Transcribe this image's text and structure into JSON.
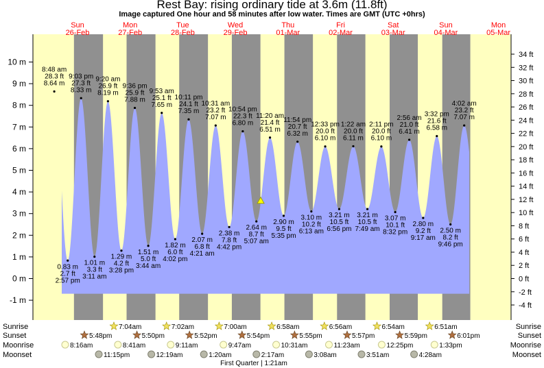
{
  "title": "Rest Bay: rising  ordinary tide at 3.6m (11.8ft)",
  "subtitle": "Image captured One hour and 58 minutes after low water. Times are GMT (UTC +0hrs)",
  "colors": {
    "day": "#ffffc0",
    "night": "#909090",
    "water": "#a0a8ff",
    "daylabel": "#ff0000"
  },
  "days": [
    {
      "name": "Sun",
      "date": "26-Feb"
    },
    {
      "name": "Mon",
      "date": "27-Feb"
    },
    {
      "name": "Tue",
      "date": "28-Feb"
    },
    {
      "name": "Wed",
      "date": "29-Feb"
    },
    {
      "name": "Thu",
      "date": "01-Mar"
    },
    {
      "name": "Fri",
      "date": "02-Mar"
    },
    {
      "name": "Sat",
      "date": "03-Mar"
    },
    {
      "name": "Sun",
      "date": "04-Mar"
    },
    {
      "name": "Mon",
      "date": "05-Mar"
    }
  ],
  "chart_data": {
    "type": "area",
    "xlabel": "",
    "ylabel": "",
    "y_left_unit": "m",
    "y_right_unit": "ft",
    "ylim_m": [
      -1.55,
      10.85
    ],
    "y_left_ticks": [
      "-1 m",
      "0 m",
      "1 m",
      "2 m",
      "3 m",
      "4 m",
      "5 m",
      "6 m",
      "7 m",
      "8 m",
      "9 m",
      "10 m"
    ],
    "y_right_ticks": [
      "-4 ft",
      "-2 ft",
      "0 ft",
      "2 ft",
      "4 ft",
      "6 ft",
      "8 ft",
      "10 ft",
      "12 ft",
      "14 ft",
      "16 ft",
      "18 ft",
      "20 ft",
      "22 ft",
      "24 ft",
      "26 ft",
      "28 ft",
      "30 ft",
      "32 ft",
      "34 ft"
    ],
    "current_level": {
      "height_m": 3.6,
      "height_ft": 11.8,
      "state": "rising"
    },
    "tides": [
      {
        "type": "high",
        "time": "8:48 am",
        "ft": "28.3 ft",
        "m": 8.64,
        "label": "8.64 m"
      },
      {
        "type": "low",
        "time": "2:57 pm",
        "ft": "2.7 ft",
        "m": 0.83,
        "label": "0.83 m"
      },
      {
        "type": "high",
        "time": "9:03 pm",
        "ft": "27.3 ft",
        "m": 8.33,
        "label": "8.33 m"
      },
      {
        "type": "low",
        "time": "3:11 am",
        "ft": "3.3 ft",
        "m": 1.01,
        "label": "1.01 m"
      },
      {
        "type": "high",
        "time": "9:20 am",
        "ft": "26.9 ft",
        "m": 8.19,
        "label": "8.19 m"
      },
      {
        "type": "low",
        "time": "3:28 pm",
        "ft": "4.2 ft",
        "m": 1.29,
        "label": "1.29 m"
      },
      {
        "type": "high",
        "time": "9:36 pm",
        "ft": "25.9 ft",
        "m": 7.88,
        "label": "7.88 m"
      },
      {
        "type": "low",
        "time": "3:44 am",
        "ft": "5.0 ft",
        "m": 1.51,
        "label": "1.51 m"
      },
      {
        "type": "high",
        "time": "9:53 am",
        "ft": "25.1 ft",
        "m": 7.65,
        "label": "7.65 m"
      },
      {
        "type": "low",
        "time": "4:02 pm",
        "ft": "6.0 ft",
        "m": 1.82,
        "label": "1.82 m"
      },
      {
        "type": "high",
        "time": "10:11 pm",
        "ft": "24.1 ft",
        "m": 7.35,
        "label": "7.35 m"
      },
      {
        "type": "low",
        "time": "4:21 am",
        "ft": "6.8 ft",
        "m": 2.07,
        "label": "2.07 m"
      },
      {
        "type": "high",
        "time": "10:31 am",
        "ft": "23.2 ft",
        "m": 7.07,
        "label": "7.07 m"
      },
      {
        "type": "low",
        "time": "4:42 pm",
        "ft": "7.8 ft",
        "m": 2.38,
        "label": "2.38 m"
      },
      {
        "type": "high",
        "time": "10:54 pm",
        "ft": "22.3 ft",
        "m": 6.8,
        "label": "6.80 m"
      },
      {
        "type": "low",
        "time": "5:07 am",
        "ft": "8.7 ft",
        "m": 2.64,
        "label": "2.64 m"
      },
      {
        "type": "high",
        "time": "11:20 am",
        "ft": "21.4 ft",
        "m": 6.51,
        "label": "6.51 m"
      },
      {
        "type": "low",
        "time": "5:35 pm",
        "ft": "9.5 ft",
        "m": 2.9,
        "label": "2.90 m"
      },
      {
        "type": "high",
        "time": "11:54 pm",
        "ft": "20.7 ft",
        "m": 6.32,
        "label": "6.32 m"
      },
      {
        "type": "low",
        "time": "6:13 am",
        "ft": "10.2 ft",
        "m": 3.1,
        "label": "3.10 m"
      },
      {
        "type": "high",
        "time": "12:33 pm",
        "ft": "20.0 ft",
        "m": 6.1,
        "label": "6.10 m"
      },
      {
        "type": "low",
        "time": "6:56 pm",
        "ft": "10.5 ft",
        "m": 3.21,
        "label": "3.21 m"
      },
      {
        "type": "high",
        "time": "1:22 am",
        "ft": "20.0 ft",
        "m": 6.11,
        "label": "6.11 m"
      },
      {
        "type": "low",
        "time": "7:49 am",
        "ft": "10.5 ft",
        "m": 3.21,
        "label": "3.21 m"
      },
      {
        "type": "high",
        "time": "2:11 pm",
        "ft": "20.0 ft",
        "m": 6.1,
        "label": "6.10 m"
      },
      {
        "type": "low",
        "time": "8:32 pm",
        "ft": "10.1 ft",
        "m": 3.07,
        "label": "3.07 m"
      },
      {
        "type": "high",
        "time": "2:56 am",
        "ft": "21.0 ft",
        "m": 6.41,
        "label": "6.41 m"
      },
      {
        "type": "low",
        "time": "9:17 am",
        "ft": "9.2 ft",
        "m": 2.8,
        "label": "2.80 m"
      },
      {
        "type": "high",
        "time": "3:32 pm",
        "ft": "21.6 ft",
        "m": 6.58,
        "label": "6.58 m"
      },
      {
        "type": "low",
        "time": "9:46 pm",
        "ft": "8.2 ft",
        "m": 2.5,
        "label": "2.50 m"
      },
      {
        "type": "high",
        "time": "4:02 am",
        "ft": "23.2 ft",
        "m": 7.07,
        "label": "7.07 m"
      }
    ]
  },
  "legend": {
    "sunrise": "Sunrise",
    "sunset": "Sunset",
    "moonrise": "Moonrise",
    "moonset": "Moonset"
  },
  "sunrise": [
    "7:04am",
    "7:02am",
    "7:00am",
    "6:58am",
    "6:56am",
    "6:54am",
    "6:51am"
  ],
  "sunset": [
    "5:48pm",
    "5:50pm",
    "5:52pm",
    "5:54pm",
    "5:55pm",
    "5:57pm",
    "5:59pm",
    "6:01pm"
  ],
  "moonrise": [
    "8:16am",
    "8:41am",
    "9:11am",
    "9:47am",
    "10:31am",
    "11:23am",
    "12:25pm",
    "1:33pm"
  ],
  "moonset": [
    "11:15pm",
    "12:19am",
    "1:20am",
    "2:17am",
    "3:08am",
    "3:51am",
    "4:28am"
  ],
  "moon_phase": "First Quarter | 1:21am"
}
